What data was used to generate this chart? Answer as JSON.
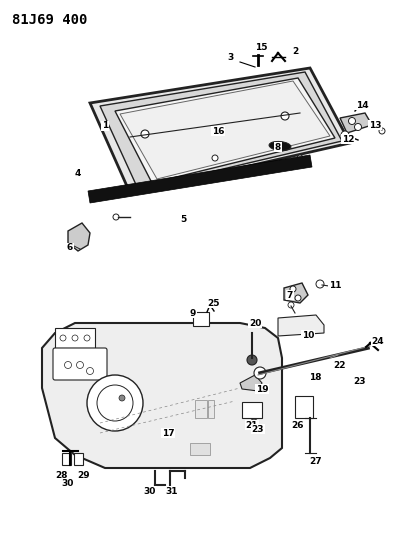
{
  "title": "81J69 400",
  "bg_color": "#ffffff",
  "fig_width": 4.0,
  "fig_height": 5.33,
  "dpi": 100
}
